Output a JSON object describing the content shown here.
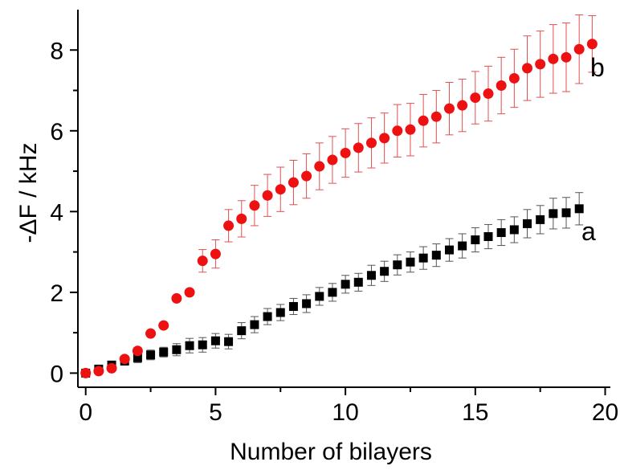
{
  "chart_data": {
    "type": "scatter",
    "xlabel": "Number of bilayers",
    "ylabel": "-ΔF / kHz",
    "xlim": [
      -0.3,
      20.2
    ],
    "ylim": [
      -0.35,
      9.0
    ],
    "xticks": [
      0,
      5,
      10,
      15,
      20
    ],
    "yticks": [
      0,
      2,
      4,
      6,
      8
    ],
    "grid": false,
    "series": [
      {
        "name": "a",
        "marker": "square",
        "color": "#000000",
        "x": [
          0,
          0.5,
          1,
          1.5,
          2,
          2.5,
          3,
          3.5,
          4,
          4.5,
          5,
          5.5,
          6,
          6.5,
          7,
          7.5,
          8,
          8.5,
          9,
          9.5,
          10,
          10.5,
          11,
          11.5,
          12,
          12.5,
          13,
          13.5,
          14,
          14.5,
          15,
          15.5,
          16,
          16.5,
          17,
          17.5,
          18,
          18.5,
          19
        ],
        "y": [
          0.0,
          0.1,
          0.2,
          0.3,
          0.38,
          0.45,
          0.52,
          0.58,
          0.68,
          0.7,
          0.8,
          0.78,
          1.05,
          1.2,
          1.4,
          1.5,
          1.65,
          1.72,
          1.9,
          2.0,
          2.2,
          2.25,
          2.42,
          2.52,
          2.68,
          2.75,
          2.85,
          2.92,
          3.05,
          3.15,
          3.3,
          3.38,
          3.48,
          3.55,
          3.7,
          3.8,
          3.95,
          3.97,
          4.07
        ],
        "err": [
          0.05,
          0.05,
          0.08,
          0.1,
          0.12,
          0.12,
          0.12,
          0.15,
          0.18,
          0.18,
          0.18,
          0.18,
          0.2,
          0.2,
          0.2,
          0.2,
          0.2,
          0.22,
          0.22,
          0.22,
          0.22,
          0.22,
          0.25,
          0.25,
          0.25,
          0.25,
          0.28,
          0.28,
          0.28,
          0.3,
          0.3,
          0.3,
          0.32,
          0.32,
          0.35,
          0.35,
          0.38,
          0.38,
          0.4
        ]
      },
      {
        "name": "b",
        "marker": "circle",
        "color": "#ee1111",
        "x": [
          0,
          0.5,
          1,
          1.5,
          2,
          2.5,
          3,
          3.5,
          4,
          4.5,
          5,
          5.5,
          6,
          6.5,
          7,
          7.5,
          8,
          8.5,
          9,
          9.5,
          10,
          10.5,
          11,
          11.5,
          12,
          12.5,
          13,
          13.5,
          14,
          14.5,
          15,
          15.5,
          16,
          16.5,
          17,
          17.5,
          18,
          18.5,
          19,
          19.5
        ],
        "y": [
          0.0,
          0.05,
          0.12,
          0.35,
          0.55,
          0.98,
          1.18,
          1.85,
          2.0,
          2.78,
          2.95,
          3.65,
          3.82,
          4.15,
          4.4,
          4.55,
          4.72,
          4.88,
          5.12,
          5.28,
          5.45,
          5.58,
          5.7,
          5.82,
          6.0,
          6.03,
          6.25,
          6.35,
          6.55,
          6.63,
          6.82,
          6.92,
          7.12,
          7.3,
          7.55,
          7.65,
          7.78,
          7.82,
          8.02,
          8.15
        ],
        "err": [
          0,
          0,
          0,
          0,
          0,
          0,
          0,
          0,
          0,
          0.28,
          0.35,
          0.4,
          0.45,
          0.5,
          0.52,
          0.55,
          0.55,
          0.55,
          0.58,
          0.58,
          0.6,
          0.6,
          0.62,
          0.62,
          0.65,
          0.65,
          0.65,
          0.65,
          0.65,
          0.65,
          0.65,
          0.68,
          0.7,
          0.72,
          0.8,
          0.82,
          0.85,
          0.85,
          0.85,
          0.7
        ]
      }
    ],
    "annotations": [
      "a",
      "b"
    ]
  }
}
